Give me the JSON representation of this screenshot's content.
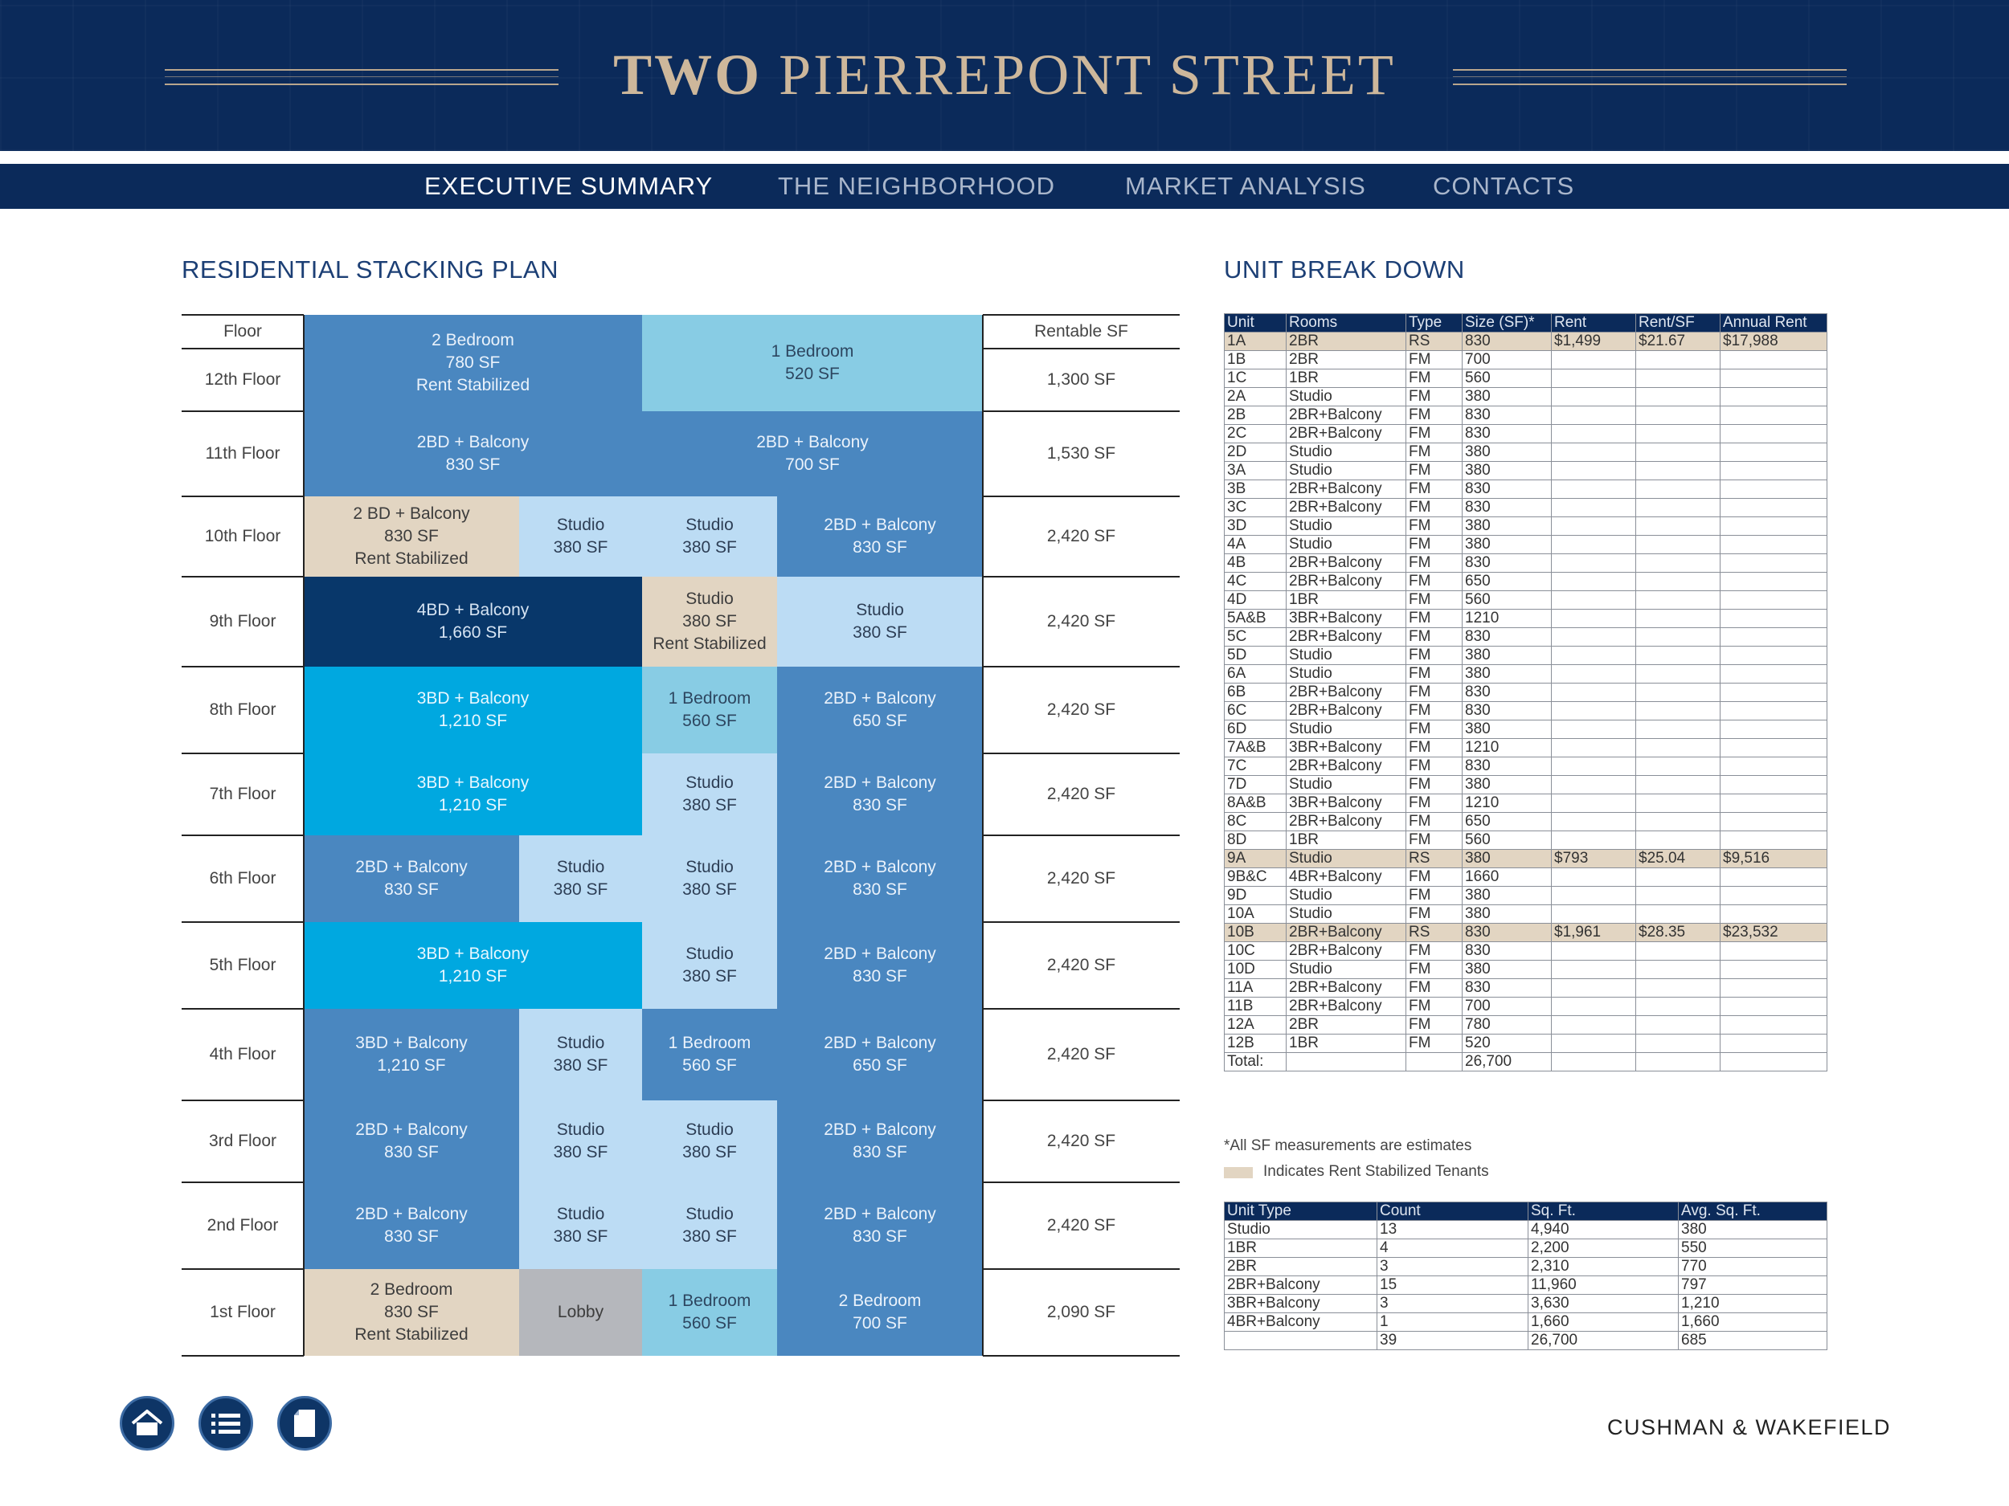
{
  "header": {
    "title_bold": "TWO",
    "title_rest": "PIERREPONT STREET"
  },
  "nav": {
    "items": [
      "EXECUTIVE SUMMARY",
      "THE NEIGHBORHOOD",
      "MARKET ANALYSIS",
      "CONTACTS"
    ],
    "active": 0
  },
  "stacking": {
    "title": "RESIDENTIAL STACKING PLAN",
    "floor_header": "Floor",
    "sf_header": "Rentable SF",
    "floors": [
      {
        "label": "12th Floor",
        "sf": "1,300 SF"
      },
      {
        "label": "11th Floor",
        "sf": "1,530 SF"
      },
      {
        "label": "10th Floor",
        "sf": "2,420 SF"
      },
      {
        "label": "9th Floor",
        "sf": "2,420 SF"
      },
      {
        "label": "8th Floor",
        "sf": "2,420 SF"
      },
      {
        "label": "7th Floor",
        "sf": "2,420 SF"
      },
      {
        "label": "6th Floor",
        "sf": "2,420 SF"
      },
      {
        "label": "5th Floor",
        "sf": "2,420 SF"
      },
      {
        "label": "4th Floor",
        "sf": "2,420 SF"
      },
      {
        "label": "3rd Floor",
        "sf": "2,420 SF"
      },
      {
        "label": "2nd Floor",
        "sf": "2,420 SF"
      },
      {
        "label": "1st Floor",
        "sf": "2,090 SF"
      }
    ],
    "units": [
      [
        "2 Bedroom",
        "780 SF",
        "Rent Stabilized"
      ],
      [
        "1 Bedroom",
        "520 SF"
      ],
      [
        "2BD + Balcony",
        "830 SF"
      ],
      [
        "2BD + Balcony",
        "700 SF"
      ],
      [
        "2 BD + Balcony",
        "830 SF",
        "Rent Stabilized"
      ],
      [
        "Studio",
        "380 SF"
      ],
      [
        "Studio",
        "380 SF"
      ],
      [
        "2BD + Balcony",
        "830 SF"
      ],
      [
        "4BD + Balcony",
        "1,660 SF"
      ],
      [
        "Studio",
        "380 SF",
        "Rent Stabilized"
      ],
      [
        "Studio",
        "380 SF"
      ],
      [
        "3BD + Balcony",
        "1,210 SF"
      ],
      [
        "1 Bedroom",
        "560 SF"
      ],
      [
        "2BD + Balcony",
        "650 SF"
      ],
      [
        "3BD + Balcony",
        "1,210 SF"
      ],
      [
        "Studio",
        "380 SF"
      ],
      [
        "2BD + Balcony",
        "830 SF"
      ],
      [
        "2BD + Balcony",
        "830 SF"
      ],
      [
        "Studio",
        "380 SF"
      ],
      [
        "Studio",
        "380 SF"
      ],
      [
        "2BD + Balcony",
        "830 SF"
      ],
      [
        "3BD + Balcony",
        "1,210 SF"
      ],
      [
        "Studio",
        "380 SF"
      ],
      [
        "2BD + Balcony",
        "830 SF"
      ],
      [
        "3BD + Balcony",
        "1,210 SF"
      ],
      [
        "Studio",
        "380 SF"
      ],
      [
        "1 Bedroom",
        "560 SF"
      ],
      [
        "2BD + Balcony",
        "650 SF"
      ],
      [
        "2BD + Balcony",
        "830 SF"
      ],
      [
        "Studio",
        "380 SF"
      ],
      [
        "Studio",
        "380 SF"
      ],
      [
        "2BD + Balcony",
        "830 SF"
      ],
      [
        "2BD + Balcony",
        "830 SF"
      ],
      [
        "Studio",
        "380 SF"
      ],
      [
        "Studio",
        "380 SF"
      ],
      [
        "2BD + Balcony",
        "830 SF"
      ],
      [
        "2 Bedroom",
        "830 SF",
        "Rent Stabilized"
      ],
      [
        "Lobby"
      ],
      [
        "1 Bedroom",
        "560 SF"
      ],
      [
        "2 Bedroom",
        "700 SF"
      ]
    ],
    "colors": {
      "mid": "#4a87c0",
      "light": "#bcdcf4",
      "sky": "#88cce4",
      "cyan": "#00a8e0",
      "dark": "#08376a",
      "beige": "#e2d5c2",
      "gray": "#b5b7bc"
    }
  },
  "breakdown": {
    "title": "UNIT BREAK DOWN",
    "headers": [
      "Unit",
      "Rooms",
      "Type",
      "Size (SF)*",
      "Rent",
      "Rent/SF",
      "Annual Rent"
    ],
    "rows": [
      [
        "1A",
        "2BR",
        "RS",
        "830",
        "$1,499",
        "$21.67",
        "$17,988"
      ],
      [
        "1B",
        "2BR",
        "FM",
        "700",
        "",
        "",
        ""
      ],
      [
        "1C",
        "1BR",
        "FM",
        "560",
        "",
        "",
        ""
      ],
      [
        "2A",
        "Studio",
        "FM",
        "380",
        "",
        "",
        ""
      ],
      [
        "2B",
        "2BR+Balcony",
        "FM",
        "830",
        "",
        "",
        ""
      ],
      [
        "2C",
        "2BR+Balcony",
        "FM",
        "830",
        "",
        "",
        ""
      ],
      [
        "2D",
        "Studio",
        "FM",
        "380",
        "",
        "",
        ""
      ],
      [
        "3A",
        "Studio",
        "FM",
        "380",
        "",
        "",
        ""
      ],
      [
        "3B",
        "2BR+Balcony",
        "FM",
        "830",
        "",
        "",
        ""
      ],
      [
        "3C",
        "2BR+Balcony",
        "FM",
        "830",
        "",
        "",
        ""
      ],
      [
        "3D",
        "Studio",
        "FM",
        "380",
        "",
        "",
        ""
      ],
      [
        "4A",
        "Studio",
        "FM",
        "380",
        "",
        "",
        ""
      ],
      [
        "4B",
        "2BR+Balcony",
        "FM",
        "830",
        "",
        "",
        ""
      ],
      [
        "4C",
        "2BR+Balcony",
        "FM",
        "650",
        "",
        "",
        ""
      ],
      [
        "4D",
        "1BR",
        "FM",
        "560",
        "",
        "",
        ""
      ],
      [
        "5A&B",
        "3BR+Balcony",
        "FM",
        "1210",
        "",
        "",
        ""
      ],
      [
        "5C",
        "2BR+Balcony",
        "FM",
        "830",
        "",
        "",
        ""
      ],
      [
        "5D",
        "Studio",
        "FM",
        "380",
        "",
        "",
        ""
      ],
      [
        "6A",
        "Studio",
        "FM",
        "380",
        "",
        "",
        ""
      ],
      [
        "6B",
        "2BR+Balcony",
        "FM",
        "830",
        "",
        "",
        ""
      ],
      [
        "6C",
        "2BR+Balcony",
        "FM",
        "830",
        "",
        "",
        ""
      ],
      [
        "6D",
        "Studio",
        "FM",
        "380",
        "",
        "",
        ""
      ],
      [
        "7A&B",
        "3BR+Balcony",
        "FM",
        "1210",
        "",
        "",
        ""
      ],
      [
        "7C",
        "2BR+Balcony",
        "FM",
        "830",
        "",
        "",
        ""
      ],
      [
        "7D",
        "Studio",
        "FM",
        "380",
        "",
        "",
        ""
      ],
      [
        "8A&B",
        "3BR+Balcony",
        "FM",
        "1210",
        "",
        "",
        ""
      ],
      [
        "8C",
        "2BR+Balcony",
        "FM",
        "650",
        "",
        "",
        ""
      ],
      [
        "8D",
        "1BR",
        "FM",
        "560",
        "",
        "",
        ""
      ],
      [
        "9A",
        "Studio",
        "RS",
        "380",
        "$793",
        "$25.04",
        "$9,516"
      ],
      [
        "9B&C",
        "4BR+Balcony",
        "FM",
        "1660",
        "",
        "",
        ""
      ],
      [
        "9D",
        "Studio",
        "FM",
        "380",
        "",
        "",
        ""
      ],
      [
        "10A",
        "Studio",
        "FM",
        "380",
        "",
        "",
        ""
      ],
      [
        "10B",
        "2BR+Balcony",
        "RS",
        "830",
        "$1,961",
        "$28.35",
        "$23,532"
      ],
      [
        "10C",
        "2BR+Balcony",
        "FM",
        "830",
        "",
        "",
        ""
      ],
      [
        "10D",
        "Studio",
        "FM",
        "380",
        "",
        "",
        ""
      ],
      [
        "11A",
        "2BR+Balcony",
        "FM",
        "830",
        "",
        "",
        ""
      ],
      [
        "11B",
        "2BR+Balcony",
        "FM",
        "700",
        "",
        "",
        ""
      ],
      [
        "12A",
        "2BR",
        "FM",
        "780",
        "",
        "",
        ""
      ],
      [
        "12B",
        "1BR",
        "FM",
        "520",
        "",
        "",
        ""
      ]
    ],
    "total": [
      "Total:",
      "",
      "",
      "26,700",
      "",
      "",
      ""
    ],
    "note": "*All SF measurements are estimates",
    "legend": "Indicates Rent Stabilized Tenants"
  },
  "summary": {
    "headers": [
      "Unit Type",
      "Count",
      "Sq. Ft.",
      "Avg. Sq. Ft."
    ],
    "rows": [
      [
        "Studio",
        "13",
        "4,940",
        "380"
      ],
      [
        "1BR",
        "4",
        "2,200",
        "550"
      ],
      [
        "2BR",
        "3",
        "2,310",
        "770"
      ],
      [
        "2BR+Balcony",
        "15",
        "11,960",
        "797"
      ],
      [
        "3BR+Balcony",
        "3",
        "3,630",
        "1,210"
      ],
      [
        "4BR+Balcony",
        "1",
        "1,660",
        "1,660"
      ]
    ],
    "total": [
      "",
      "39",
      "26,700",
      "685"
    ]
  },
  "footer": {
    "brand": "CUSHMAN & WAKEFIELD",
    "icons": [
      "home-icon",
      "list-icon",
      "document-icon"
    ]
  }
}
